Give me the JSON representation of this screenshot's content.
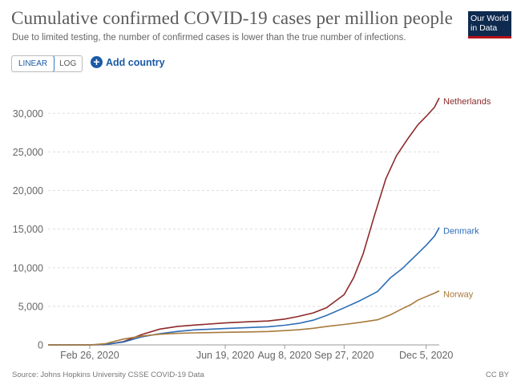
{
  "header": {
    "title": "Cumulative confirmed COVID-19 cases per million people",
    "subtitle": "Due to limited testing, the number of confirmed cases is lower than the true number of infections."
  },
  "logo": {
    "line1": "Our World",
    "line2": "in Data"
  },
  "controls": {
    "linear_label": "LINEAR",
    "log_label": "LOG",
    "active_scale": "linear",
    "add_country_label": "Add country"
  },
  "footer": {
    "source": "Source: Johns Hopkins University CSSE COVID-19 Data",
    "license": "CC BY"
  },
  "chart_data": {
    "type": "line",
    "title": "Cumulative confirmed COVID-19 cases per million people",
    "xlabel": "",
    "ylabel": "",
    "x_type": "date",
    "xlim": [
      "2020-01-22",
      "2020-12-16"
    ],
    "ylim": [
      0,
      32000
    ],
    "y_ticks": [
      0,
      5000,
      10000,
      15000,
      20000,
      25000,
      30000
    ],
    "y_tick_labels": [
      "0",
      "5,000",
      "10,000",
      "15,000",
      "20,000",
      "25,000",
      "30,000"
    ],
    "x_ticks": [
      "2020-02-26",
      "2020-06-19",
      "2020-08-08",
      "2020-09-27",
      "2020-12-05"
    ],
    "x_tick_labels": [
      "Feb 26, 2020",
      "Jun 19, 2020",
      "Aug 8, 2020",
      "Sep 27, 2020",
      "Dec 5, 2020"
    ],
    "grid": "horizontal-dashed",
    "legend": "line-end-labels",
    "series": [
      {
        "name": "Netherlands",
        "color": "#8e2a2a",
        "points": [
          [
            "2020-01-22",
            0
          ],
          [
            "2020-02-26",
            0
          ],
          [
            "2020-03-10",
            30
          ],
          [
            "2020-03-25",
            400
          ],
          [
            "2020-04-10",
            1350
          ],
          [
            "2020-04-25",
            2050
          ],
          [
            "2020-05-10",
            2400
          ],
          [
            "2020-05-25",
            2580
          ],
          [
            "2020-06-19",
            2850
          ],
          [
            "2020-07-10",
            3000
          ],
          [
            "2020-07-25",
            3100
          ],
          [
            "2020-08-08",
            3350
          ],
          [
            "2020-08-20",
            3700
          ],
          [
            "2020-09-01",
            4150
          ],
          [
            "2020-09-12",
            4800
          ],
          [
            "2020-09-27",
            6500
          ],
          [
            "2020-10-05",
            8700
          ],
          [
            "2020-10-13",
            11800
          ],
          [
            "2020-10-22",
            16500
          ],
          [
            "2020-11-01",
            21500
          ],
          [
            "2020-11-10",
            24500
          ],
          [
            "2020-11-20",
            26800
          ],
          [
            "2020-11-28",
            28500
          ],
          [
            "2020-12-05",
            29600
          ],
          [
            "2020-12-12",
            30800
          ],
          [
            "2020-12-16",
            32000
          ]
        ]
      },
      {
        "name": "Denmark",
        "color": "#2d6db5",
        "points": [
          [
            "2020-01-22",
            0
          ],
          [
            "2020-02-26",
            0
          ],
          [
            "2020-03-10",
            60
          ],
          [
            "2020-03-25",
            350
          ],
          [
            "2020-04-10",
            1050
          ],
          [
            "2020-04-25",
            1450
          ],
          [
            "2020-05-10",
            1750
          ],
          [
            "2020-05-25",
            1950
          ],
          [
            "2020-06-19",
            2120
          ],
          [
            "2020-07-10",
            2250
          ],
          [
            "2020-07-25",
            2350
          ],
          [
            "2020-08-08",
            2550
          ],
          [
            "2020-08-20",
            2800
          ],
          [
            "2020-09-01",
            3200
          ],
          [
            "2020-09-12",
            3800
          ],
          [
            "2020-09-27",
            4800
          ],
          [
            "2020-10-10",
            5700
          ],
          [
            "2020-10-25",
            6900
          ],
          [
            "2020-11-05",
            8700
          ],
          [
            "2020-11-15",
            9900
          ],
          [
            "2020-11-25",
            11400
          ],
          [
            "2020-12-05",
            12900
          ],
          [
            "2020-12-12",
            14100
          ],
          [
            "2020-12-16",
            15200
          ]
        ]
      },
      {
        "name": "Norway",
        "color": "#a87a3c",
        "points": [
          [
            "2020-01-22",
            0
          ],
          [
            "2020-02-26",
            0
          ],
          [
            "2020-03-10",
            150
          ],
          [
            "2020-03-25",
            750
          ],
          [
            "2020-04-10",
            1150
          ],
          [
            "2020-04-25",
            1380
          ],
          [
            "2020-05-10",
            1500
          ],
          [
            "2020-05-25",
            1560
          ],
          [
            "2020-06-19",
            1630
          ],
          [
            "2020-07-10",
            1680
          ],
          [
            "2020-07-25",
            1730
          ],
          [
            "2020-08-08",
            1850
          ],
          [
            "2020-08-20",
            1960
          ],
          [
            "2020-09-01",
            2150
          ],
          [
            "2020-09-12",
            2380
          ],
          [
            "2020-09-27",
            2650
          ],
          [
            "2020-10-10",
            2900
          ],
          [
            "2020-10-25",
            3250
          ],
          [
            "2020-11-05",
            3900
          ],
          [
            "2020-11-15",
            4700
          ],
          [
            "2020-11-22",
            5200
          ],
          [
            "2020-11-28",
            5800
          ],
          [
            "2020-12-05",
            6250
          ],
          [
            "2020-12-12",
            6700
          ],
          [
            "2020-12-16",
            7000
          ]
        ]
      }
    ]
  }
}
